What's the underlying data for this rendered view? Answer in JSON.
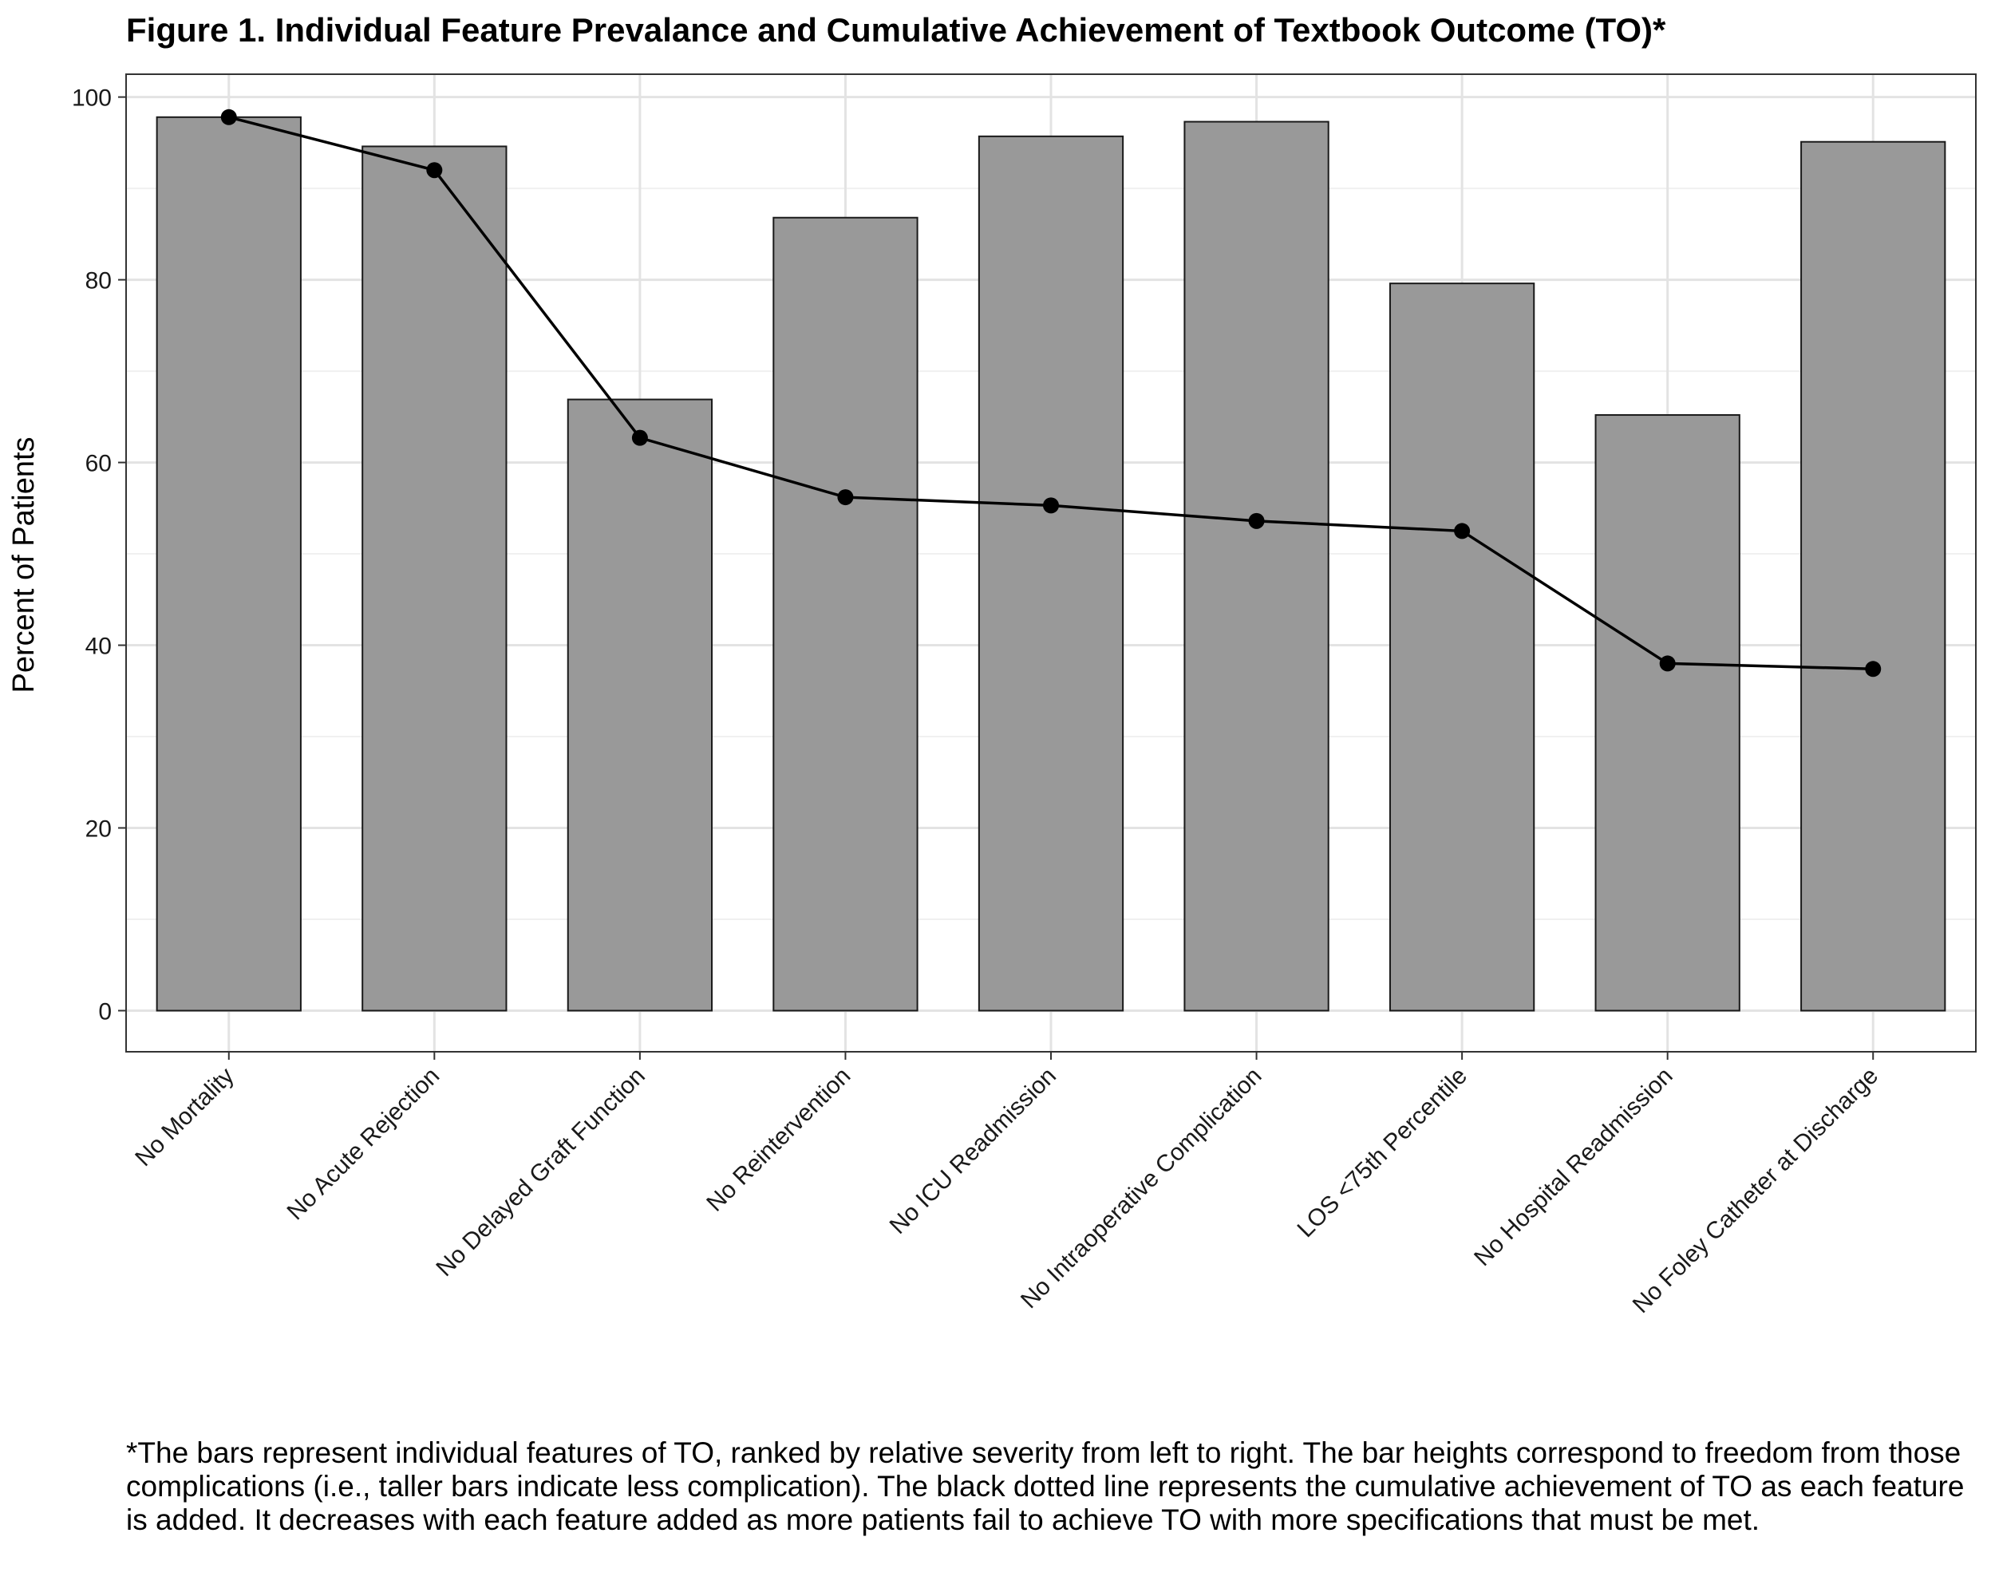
{
  "chart_data": {
    "type": "bar",
    "title": "Figure 1. Individual Feature Prevalance and Cumulative Achievement of Textbook Outcome (TO)*",
    "xlabel": "",
    "ylabel": "Percent of Patients",
    "ylim": [
      -4.5,
      102.5
    ],
    "yticks": [
      0,
      20,
      40,
      60,
      80,
      100
    ],
    "categories": [
      "No Mortality",
      "No Acute Rejection",
      "No Delayed Graft Function",
      "No Reintervention",
      "No ICU Readmission",
      "No Intraoperative Complication",
      "LOS <75th Percentile",
      "No Hospital Readmission",
      "No Foley Catheter at Discharge"
    ],
    "series": [
      {
        "type": "bar",
        "values": [
          97.8,
          94.6,
          66.9,
          86.8,
          95.7,
          97.3,
          79.6,
          65.2,
          95.1
        ],
        "color": "#999999"
      },
      {
        "type": "line",
        "values": [
          97.8,
          92.0,
          62.7,
          56.2,
          55.3,
          53.6,
          52.5,
          38.0,
          37.4
        ],
        "color": "#000000"
      }
    ],
    "grid": true,
    "legend": "none",
    "footnote": "*The bars represent individual features of TO, ranked by relative severity from left to right. The bar heights correspond to freedom from those complications (i.e., taller bars indicate less complication). The black dotted line represents the cumulative achievement of TO as each feature is added. It decreases with each feature added as more patients fail to achieve TO with more specifications that must be met."
  }
}
